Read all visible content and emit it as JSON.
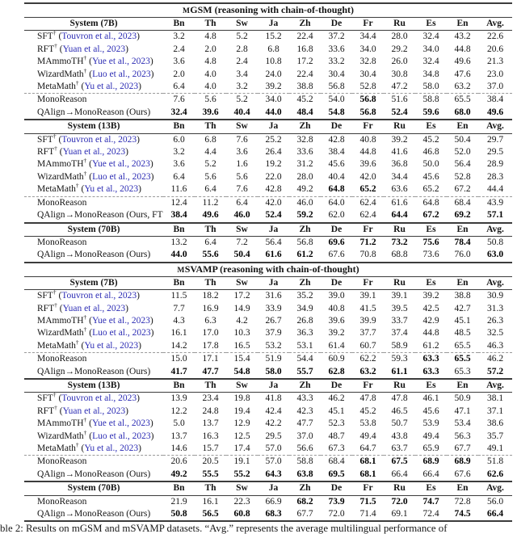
{
  "colors": {
    "citation_link": "#2d2db4",
    "rule": "#3c3c3c",
    "dashed_rule": "#9a9a9a"
  },
  "caption": {
    "text": "ble 2: Results on mGSM and mSVAMP datasets. “Avg.” represents the average multilingual performance of"
  },
  "tables": [
    {
      "name": "mgsm",
      "title": {
        "prefix": "M",
        "rest": "GSM",
        "suffix": " (reasoning with chain-of-thought)"
      },
      "columns": [
        "Bn",
        "Th",
        "Sw",
        "Ja",
        "Zh",
        "De",
        "Fr",
        "Ru",
        "Es",
        "En",
        "Avg."
      ],
      "groups": [
        {
          "header": "System (7B)",
          "rows": [
            {
              "label": "SFT",
              "dagger": true,
              "cite": "Touvron et al., 2023",
              "values": [
                "3.2",
                "4.8",
                "5.2",
                "15.2",
                "22.4",
                "37.2",
                "34.4",
                "28.0",
                "32.4",
                "43.2",
                "22.6"
              ],
              "bold": []
            },
            {
              "label": "RFT",
              "dagger": true,
              "cite": "Yuan et al., 2023",
              "values": [
                "2.4",
                "2.0",
                "2.8",
                "6.8",
                "16.8",
                "33.6",
                "34.0",
                "29.2",
                "34.0",
                "44.8",
                "20.6"
              ],
              "bold": []
            },
            {
              "label": "MAmmoTH",
              "dagger": true,
              "cite": "Yue et al., 2023",
              "values": [
                "3.6",
                "4.8",
                "2.4",
                "10.8",
                "17.2",
                "33.2",
                "32.8",
                "26.0",
                "32.4",
                "49.6",
                "21.3"
              ],
              "bold": []
            },
            {
              "label": "WizardMath",
              "dagger": true,
              "cite": "Luo et al., 2023",
              "values": [
                "2.0",
                "4.0",
                "3.4",
                "24.0",
                "22.4",
                "30.4",
                "30.4",
                "30.8",
                "34.8",
                "47.6",
                "23.0"
              ],
              "bold": []
            },
            {
              "label": "MetaMath",
              "dagger": true,
              "cite": "Yu et al., 2023",
              "values": [
                "6.4",
                "4.0",
                "3.2",
                "39.2",
                "38.8",
                "56.8",
                "52.8",
                "47.2",
                "58.0",
                "63.2",
                "37.0"
              ],
              "bold": []
            },
            {
              "label": "MonoReason",
              "dashed": true,
              "values": [
                "7.6",
                "5.6",
                "5.2",
                "34.0",
                "45.2",
                "54.0",
                "56.8",
                "51.6",
                "58.8",
                "65.5",
                "38.4"
              ],
              "bold": [
                6
              ]
            },
            {
              "label": "QAlign→MonoReason (Ours)",
              "values": [
                "32.4",
                "39.6",
                "40.4",
                "44.0",
                "48.4",
                "54.8",
                "56.8",
                "52.4",
                "59.6",
                "68.0",
                "49.6"
              ],
              "bold": [
                0,
                1,
                2,
                3,
                4,
                5,
                6,
                7,
                8,
                9,
                10
              ]
            }
          ]
        },
        {
          "header": "System (13B)",
          "rows": [
            {
              "label": "SFT",
              "dagger": true,
              "cite": "Touvron et al., 2023",
              "values": [
                "6.0",
                "6.8",
                "7.6",
                "25.2",
                "32.8",
                "42.8",
                "40.8",
                "39.2",
                "45.2",
                "50.4",
                "29.7"
              ],
              "bold": []
            },
            {
              "label": "RFT",
              "dagger": true,
              "cite": "Yuan et al., 2023",
              "values": [
                "3.2",
                "4.4",
                "3.6",
                "26.4",
                "33.6",
                "38.4",
                "44.8",
                "41.6",
                "46.8",
                "52.0",
                "29.5"
              ],
              "bold": []
            },
            {
              "label": "MAmmoTH",
              "dagger": true,
              "cite": "Yue et al., 2023",
              "values": [
                "3.6",
                "5.2",
                "1.6",
                "19.2",
                "31.2",
                "45.6",
                "39.6",
                "36.8",
                "50.0",
                "56.4",
                "28.9"
              ],
              "bold": []
            },
            {
              "label": "WizardMath",
              "dagger": true,
              "cite": "Luo et al., 2023",
              "values": [
                "6.4",
                "5.6",
                "5.6",
                "22.0",
                "28.0",
                "40.4",
                "42.0",
                "34.4",
                "45.6",
                "52.8",
                "28.3"
              ],
              "bold": []
            },
            {
              "label": "MetaMath",
              "dagger": true,
              "cite": "Yu et al., 2023",
              "values": [
                "11.6",
                "6.4",
                "7.6",
                "42.8",
                "49.2",
                "64.8",
                "65.2",
                "63.6",
                "65.2",
                "67.2",
                "44.4"
              ],
              "bold": [
                5,
                6
              ]
            },
            {
              "label": "MonoReason",
              "dashed": true,
              "values": [
                "12.4",
                "11.2",
                "6.4",
                "42.0",
                "46.0",
                "64.0",
                "62.4",
                "61.6",
                "64.8",
                "68.4",
                "43.9"
              ],
              "bold": []
            },
            {
              "label": "QAlign→MonoReason (Ours, FT)",
              "values": [
                "38.4",
                "49.6",
                "46.0",
                "52.4",
                "59.2",
                "62.0",
                "62.4",
                "64.4",
                "67.2",
                "69.2",
                "57.1"
              ],
              "bold": [
                0,
                1,
                2,
                3,
                4,
                7,
                8,
                9,
                10
              ]
            }
          ]
        },
        {
          "header": "System (70B)",
          "rows": [
            {
              "label": "MonoReason",
              "values": [
                "13.2",
                "6.4",
                "7.2",
                "56.4",
                "56.8",
                "69.6",
                "71.2",
                "73.2",
                "75.6",
                "78.4",
                "50.8"
              ],
              "bold": [
                5,
                6,
                7,
                8,
                9
              ]
            },
            {
              "label": "QAlign→MonoReason (Ours)",
              "values": [
                "44.0",
                "55.6",
                "50.4",
                "61.6",
                "61.2",
                "67.6",
                "70.8",
                "68.8",
                "73.6",
                "76.0",
                "63.0"
              ],
              "bold": [
                0,
                1,
                2,
                3,
                4,
                10
              ]
            }
          ]
        }
      ]
    },
    {
      "name": "msvamp",
      "title": {
        "prefix": "M",
        "rest": "SVAMP",
        "suffix": " (reasoning with chain-of-thought)"
      },
      "columns": [
        "Bn",
        "Th",
        "Sw",
        "Ja",
        "Zh",
        "De",
        "Fr",
        "Ru",
        "Es",
        "En",
        "Avg."
      ],
      "groups": [
        {
          "header": "System (7B)",
          "rows": [
            {
              "label": "SFT",
              "dagger": true,
              "cite": "Touvron et al., 2023",
              "values": [
                "11.5",
                "18.2",
                "17.2",
                "31.6",
                "35.2",
                "39.0",
                "39.1",
                "39.1",
                "39.2",
                "38.8",
                "30.9"
              ],
              "bold": []
            },
            {
              "label": "RFT",
              "dagger": true,
              "cite": "Yuan et al., 2023",
              "values": [
                "7.7",
                "16.9",
                "14.9",
                "33.9",
                "34.9",
                "40.8",
                "41.5",
                "39.5",
                "42.5",
                "42.7",
                "31.3"
              ],
              "bold": []
            },
            {
              "label": "MAmmoTH",
              "dagger": true,
              "cite": "Yue et al., 2023",
              "values": [
                "4.3",
                "6.3",
                "4.2",
                "26.7",
                "26.8",
                "39.6",
                "39.9",
                "33.7",
                "42.9",
                "45.1",
                "26.3"
              ],
              "bold": []
            },
            {
              "label": "WizardMath",
              "dagger": true,
              "cite": "Luo et al., 2023",
              "values": [
                "16.1",
                "17.0",
                "10.3",
                "37.9",
                "36.3",
                "39.2",
                "37.7",
                "37.4",
                "44.8",
                "48.5",
                "32.5"
              ],
              "bold": []
            },
            {
              "label": "MetaMath",
              "dagger": true,
              "cite": "Yu et al., 2023",
              "values": [
                "14.2",
                "17.8",
                "16.5",
                "53.2",
                "53.1",
                "61.4",
                "60.7",
                "58.9",
                "61.2",
                "65.5",
                "46.3"
              ],
              "bold": []
            },
            {
              "label": "MonoReason",
              "dashed": true,
              "values": [
                "15.0",
                "17.1",
                "15.4",
                "51.9",
                "54.4",
                "60.9",
                "62.2",
                "59.3",
                "63.3",
                "65.5",
                "46.2"
              ],
              "bold": [
                8,
                9
              ]
            },
            {
              "label": "QAlign→MonoReason (Ours)",
              "values": [
                "41.7",
                "47.7",
                "54.8",
                "58.0",
                "55.7",
                "62.8",
                "63.2",
                "61.1",
                "63.3",
                "65.3",
                "57.2"
              ],
              "bold": [
                0,
                1,
                2,
                3,
                4,
                5,
                6,
                7,
                8,
                10
              ]
            }
          ]
        },
        {
          "header": "System (13B)",
          "rows": [
            {
              "label": "SFT",
              "dagger": true,
              "cite": "Touvron et al., 2023",
              "values": [
                "13.9",
                "23.4",
                "19.8",
                "41.8",
                "43.3",
                "46.2",
                "47.8",
                "47.8",
                "46.1",
                "50.9",
                "38.1"
              ],
              "bold": []
            },
            {
              "label": "RFT",
              "dagger": true,
              "cite": "Yuan et al., 2023",
              "values": [
                "12.2",
                "24.8",
                "19.4",
                "42.4",
                "42.3",
                "45.1",
                "45.2",
                "46.5",
                "45.6",
                "47.1",
                "37.1"
              ],
              "bold": []
            },
            {
              "label": "MAmmoTH",
              "dagger": true,
              "cite": "Yue et al., 2023",
              "values": [
                "5.0",
                "13.7",
                "12.9",
                "42.2",
                "47.7",
                "52.3",
                "53.8",
                "50.7",
                "53.9",
                "53.4",
                "38.6"
              ],
              "bold": []
            },
            {
              "label": "WizardMath",
              "dagger": true,
              "cite": "Luo et al., 2023",
              "values": [
                "13.7",
                "16.3",
                "12.5",
                "29.5",
                "37.0",
                "48.7",
                "49.4",
                "43.8",
                "49.4",
                "56.3",
                "35.7"
              ],
              "bold": []
            },
            {
              "label": "MetaMath",
              "dagger": true,
              "cite": "Yu et al., 2023",
              "values": [
                "14.6",
                "15.7",
                "17.4",
                "57.0",
                "56.6",
                "67.3",
                "64.7",
                "63.7",
                "65.9",
                "67.7",
                "49.1"
              ],
              "bold": []
            },
            {
              "label": "MonoReason",
              "dashed": true,
              "values": [
                "20.6",
                "20.5",
                "19.1",
                "57.0",
                "58.8",
                "68.4",
                "68.1",
                "67.5",
                "68.9",
                "68.9",
                "51.8"
              ],
              "bold": [
                6,
                7,
                8,
                9
              ]
            },
            {
              "label": "QAlign→MonoReason (Ours)",
              "values": [
                "49.2",
                "55.5",
                "55.2",
                "64.3",
                "63.8",
                "69.5",
                "68.1",
                "66.4",
                "66.4",
                "67.6",
                "62.6"
              ],
              "bold": [
                0,
                1,
                2,
                3,
                4,
                5,
                6,
                10
              ]
            }
          ]
        },
        {
          "header": "System (70B)",
          "rows": [
            {
              "label": "MonoReason",
              "values": [
                "21.9",
                "16.1",
                "22.3",
                "66.9",
                "68.2",
                "73.9",
                "71.5",
                "72.0",
                "74.7",
                "72.8",
                "56.0"
              ],
              "bold": [
                4,
                5,
                6,
                7,
                8
              ]
            },
            {
              "label": "QAlign→MonoReason (Ours)",
              "values": [
                "50.8",
                "56.5",
                "60.8",
                "68.3",
                "67.7",
                "72.0",
                "71.4",
                "69.1",
                "72.4",
                "74.5",
                "66.4"
              ],
              "bold": [
                0,
                1,
                2,
                3,
                9,
                10
              ]
            }
          ]
        }
      ]
    }
  ]
}
